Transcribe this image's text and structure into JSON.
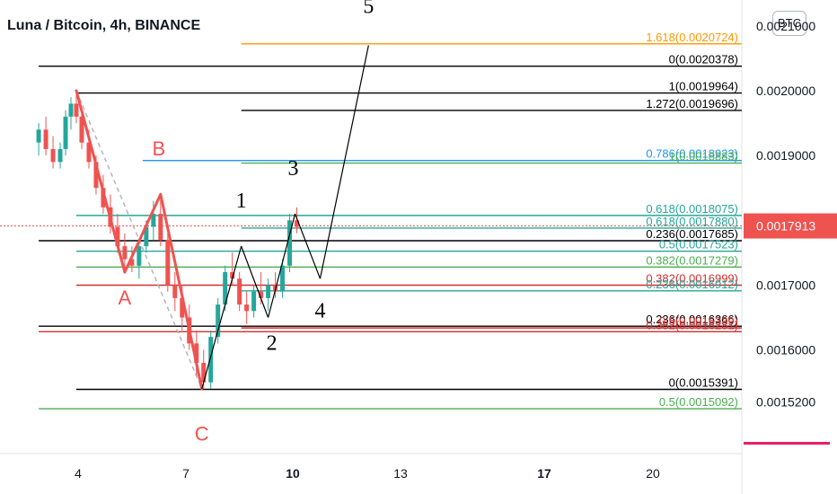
{
  "header": {
    "title": "Luna / Bitcoin, 4h, BINANCE",
    "currency": "BTC"
  },
  "colors": {
    "up": "#26a69a",
    "down": "#ef5350",
    "pattern": "#ef5350",
    "wave": "#000000",
    "fib_black": "#000000",
    "fib_red": "#d32f2f",
    "fib_green": "#4caf50",
    "fib_teal": "#26a69a",
    "fib_orange": "#ff9800",
    "fib_blue": "#2196f3",
    "last_price_bg": "#ef5350",
    "axis_text": "#131722",
    "grid": "#e0e3eb"
  },
  "chart_data": {
    "type": "candlestick",
    "symbol": "Luna / Bitcoin",
    "interval": "4h",
    "exchange": "BINANCE",
    "x_ticks": [
      "4",
      "7",
      "10",
      "13",
      "17",
      "20"
    ],
    "y_ticks": [
      "0.0021000",
      "0.0020000",
      "0.0019000",
      "0.0017000",
      "0.0016000",
      "0.0015200"
    ],
    "ylim": [
      0.00144,
      0.00214
    ],
    "last_price": {
      "value": 0.0017913,
      "label": "0.0017913"
    },
    "candles": [
      [
        2.9,
        0.00192,
        0.00195,
        0.0019,
        0.00194
      ],
      [
        3.1,
        0.00194,
        0.00196,
        0.0019,
        0.00191
      ],
      [
        3.3,
        0.00191,
        0.00193,
        0.00188,
        0.00189
      ],
      [
        3.5,
        0.00189,
        0.00192,
        0.00188,
        0.00191
      ],
      [
        3.65,
        0.00191,
        0.00197,
        0.0019,
        0.00196
      ],
      [
        3.8,
        0.00196,
        0.00199,
        0.00194,
        0.00198
      ],
      [
        3.95,
        0.00198,
        0.002,
        0.00195,
        0.00196
      ],
      [
        4.1,
        0.00196,
        0.00197,
        0.00191,
        0.00192
      ],
      [
        4.3,
        0.00192,
        0.00194,
        0.00188,
        0.00189
      ],
      [
        4.5,
        0.00189,
        0.0019,
        0.00184,
        0.00185
      ],
      [
        4.7,
        0.00185,
        0.00187,
        0.00181,
        0.00182
      ],
      [
        4.9,
        0.00182,
        0.00184,
        0.00178,
        0.00179
      ],
      [
        5.1,
        0.00179,
        0.00181,
        0.00175,
        0.00176
      ],
      [
        5.3,
        0.00176,
        0.00178,
        0.00172,
        0.00174
      ],
      [
        5.5,
        0.00174,
        0.00176,
        0.00172,
        0.00173
      ],
      [
        5.7,
        0.00173,
        0.00177,
        0.00171,
        0.00176
      ],
      [
        5.9,
        0.00176,
        0.0018,
        0.00175,
        0.00179
      ],
      [
        6.1,
        0.00179,
        0.00183,
        0.00177,
        0.00181
      ],
      [
        6.3,
        0.00181,
        0.00184,
        0.00176,
        0.00177
      ],
      [
        6.5,
        0.00177,
        0.00178,
        0.00169,
        0.0017
      ],
      [
        6.7,
        0.0017,
        0.00172,
        0.00166,
        0.00168
      ],
      [
        6.9,
        0.00168,
        0.0017,
        0.00163,
        0.00165
      ],
      [
        7.1,
        0.00165,
        0.00167,
        0.0016,
        0.00161
      ],
      [
        7.3,
        0.00161,
        0.00163,
        0.00156,
        0.00158
      ],
      [
        7.5,
        0.00158,
        0.0016,
        0.00154,
        0.00155
      ],
      [
        7.7,
        0.00155,
        0.00163,
        0.00154,
        0.00162
      ],
      [
        7.9,
        0.00162,
        0.00168,
        0.00161,
        0.00167
      ],
      [
        8.1,
        0.00167,
        0.00173,
        0.00166,
        0.00172
      ],
      [
        8.3,
        0.00172,
        0.00175,
        0.0017,
        0.00171
      ],
      [
        8.5,
        0.00171,
        0.00172,
        0.00166,
        0.00167
      ],
      [
        8.7,
        0.00167,
        0.00169,
        0.00164,
        0.00166
      ],
      [
        8.9,
        0.00166,
        0.0017,
        0.00165,
        0.00169
      ],
      [
        9.1,
        0.00169,
        0.00172,
        0.00167,
        0.00168
      ],
      [
        9.3,
        0.00168,
        0.00171,
        0.00166,
        0.0017
      ],
      [
        9.5,
        0.0017,
        0.00172,
        0.00168,
        0.00169
      ],
      [
        9.7,
        0.00169,
        0.00174,
        0.00168,
        0.00173
      ],
      [
        9.9,
        0.00173,
        0.00181,
        0.00172,
        0.0018
      ],
      [
        10.1,
        0.0018,
        0.00182,
        0.00178,
        0.00179
      ]
    ],
    "pattern_lines": [
      {
        "from": [
          3.95,
          0.002
        ],
        "to": [
          5.3,
          0.00172
        ]
      },
      {
        "from": [
          5.3,
          0.00172
        ],
        "to": [
          6.3,
          0.00184
        ]
      },
      {
        "from": [
          6.3,
          0.00184
        ],
        "to": [
          7.45,
          0.00154
        ]
      }
    ],
    "pattern_labels": [
      {
        "text": "B",
        "x": 6.25,
        "y": 0.0019
      },
      {
        "text": "A",
        "x": 5.3,
        "y": 0.00167
      },
      {
        "text": "C",
        "x": 7.45,
        "y": 0.00146
      }
    ],
    "wave_lines": [
      {
        "from": [
          7.45,
          0.00154
        ],
        "to": [
          8.55,
          0.00176
        ]
      },
      {
        "from": [
          8.55,
          0.00176
        ],
        "to": [
          9.3,
          0.00165
        ]
      },
      {
        "from": [
          9.3,
          0.00165
        ],
        "to": [
          10.05,
          0.00181
        ]
      },
      {
        "from": [
          10.05,
          0.00181
        ],
        "to": [
          10.75,
          0.00171
        ]
      },
      {
        "from": [
          10.75,
          0.00171
        ],
        "to": [
          12.1,
          0.00207
        ]
      }
    ],
    "wave_labels": [
      {
        "text": "1",
        "x": 8.55,
        "y": 0.00182
      },
      {
        "text": "2",
        "x": 9.4,
        "y": 0.0016
      },
      {
        "text": "3",
        "x": 10.0,
        "y": 0.00187
      },
      {
        "text": "4",
        "x": 10.75,
        "y": 0.00165
      },
      {
        "text": "5",
        "x": 12.1,
        "y": 0.00212
      }
    ],
    "fib_levels": [
      {
        "label": "1.618(0.0020724)",
        "value": 0.0020724,
        "color": "#ff9800",
        "x_start": 8.55
      },
      {
        "label": "0(0.0020378)",
        "value": 0.0020378,
        "color": "#000000",
        "x_start": 2.9
      },
      {
        "label": "1(0.0019964)",
        "value": 0.0019964,
        "color": "#000000",
        "x_start": 3.95
      },
      {
        "label": "1.272(0.0019696)",
        "value": 0.0019696,
        "color": "#000000",
        "x_start": 8.55
      },
      {
        "label": "0.786(0.0018923)",
        "value": 0.0018923,
        "color": "#2196f3",
        "x_start": 5.8
      },
      {
        "label": "1(0.0018883)",
        "value": 0.0018883,
        "color": "#4caf50",
        "x_start": 8.55
      },
      {
        "label": "0.618(0.0018075)",
        "value": 0.0018075,
        "color": "#26a69a",
        "x_start": 3.95
      },
      {
        "label": "0.618(0.0017880)",
        "value": 0.001788,
        "color": "#26a69a",
        "x_start": 8.55
      },
      {
        "label": "0.236(0.0017685)",
        "value": 0.0017685,
        "color": "#000000",
        "x_start": 2.9
      },
      {
        "label": "0.5(0.0017523)",
        "value": 0.0017523,
        "color": "#26a69a",
        "x_start": 3.95
      },
      {
        "label": "0.382(0.0017279)",
        "value": 0.0017279,
        "color": "#4caf50",
        "x_start": 3.95
      },
      {
        "label": "0.382(0.0016999)",
        "value": 0.0016999,
        "color": "#d32f2f",
        "x_start": 3.95
      },
      {
        "label": "0.236(0.0016912)",
        "value": 0.0016912,
        "color": "#26a69a",
        "x_start": 8.55
      },
      {
        "label": "0.236(0.0016366)",
        "value": 0.0016366,
        "color": "#000000",
        "x_start": 2.9
      },
      {
        "label": "0.5(0.0016339)",
        "value": 0.0016339,
        "color": "#d32f2f",
        "x_start": 8.55
      },
      {
        "label": "0.382(0.0016281)",
        "value": 0.0016281,
        "color": "#d32f2f",
        "x_start": 2.9
      },
      {
        "label": "0(0.0015391)",
        "value": 0.0015391,
        "color": "#000000",
        "x_start": 3.95
      },
      {
        "label": "0.5(0.0015092)",
        "value": 0.0015092,
        "color": "#4caf50",
        "x_start": 2.9
      }
    ]
  }
}
